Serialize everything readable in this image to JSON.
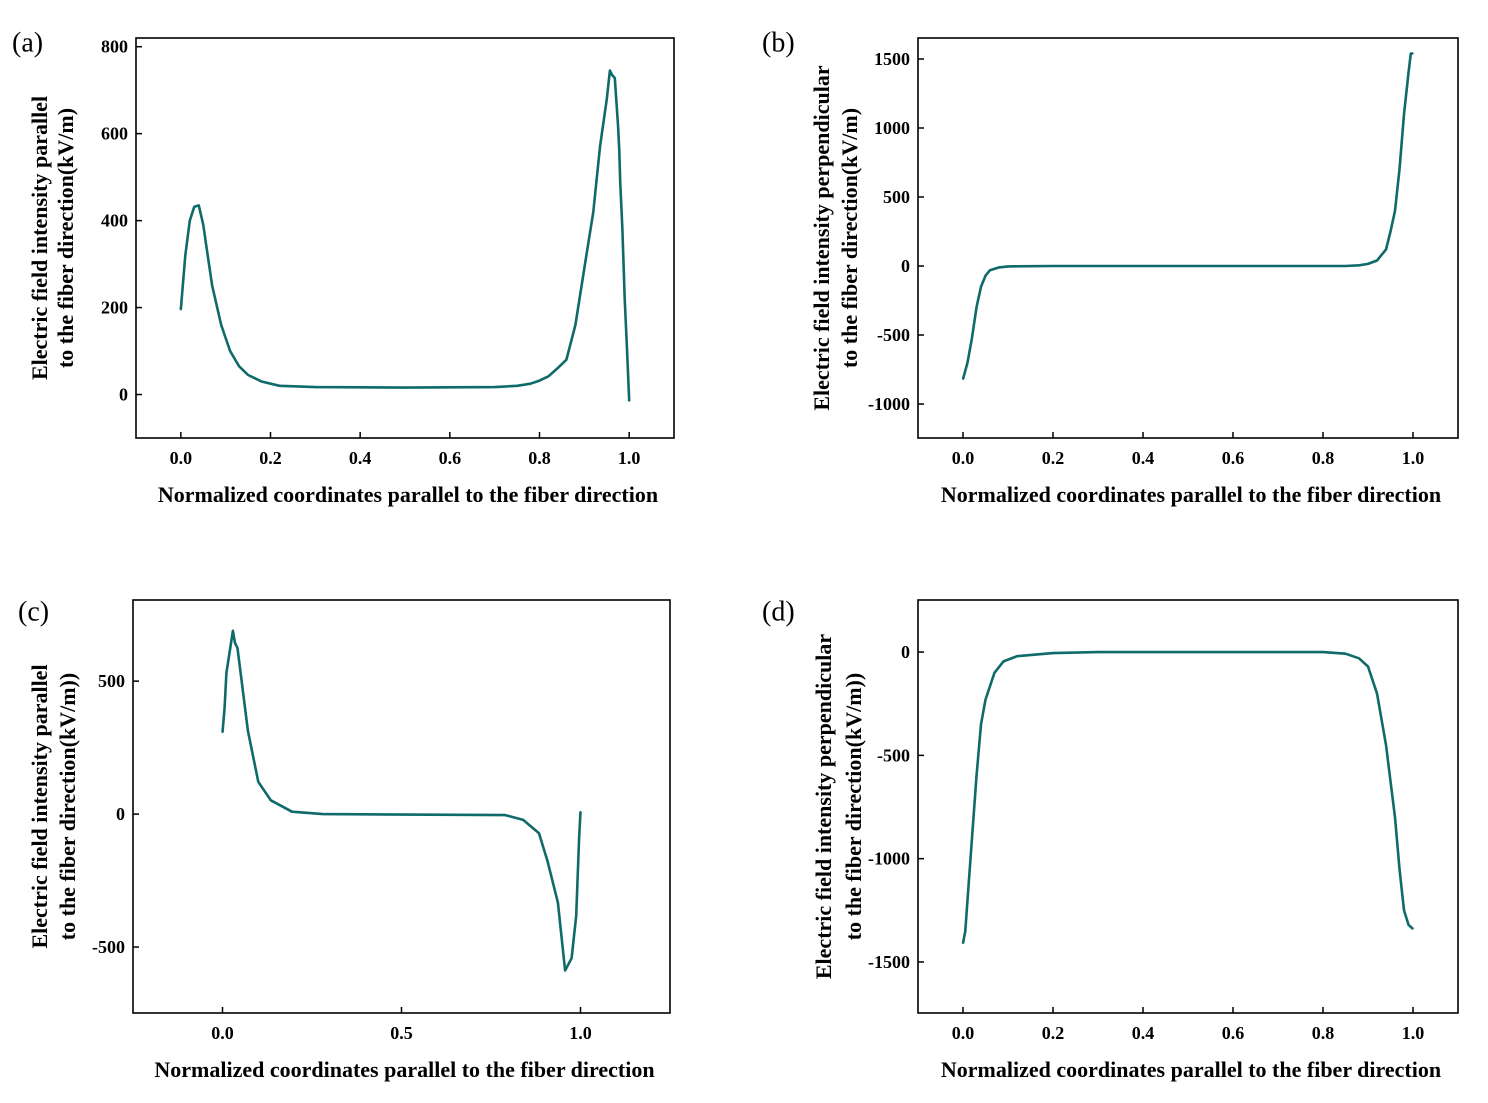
{
  "line_color": "#0f6a6a",
  "chart_data": [
    {
      "panel": "(a)",
      "type": "line",
      "xlabel": "Normalized coordinates parallel to the fiber direction",
      "ylabel": [
        "Electric field intensity parallel",
        "to the fiber direction(kV/m)"
      ],
      "xlim": [
        -0.1,
        1.1
      ],
      "ylim": [
        -100,
        820
      ],
      "xticks": [
        0.0,
        0.2,
        0.4,
        0.6,
        0.8,
        1.0
      ],
      "xtick_labels": [
        "0.0",
        "0.2",
        "0.4",
        "0.6",
        "0.8",
        "1.0"
      ],
      "yticks": [
        0,
        200,
        400,
        600,
        800
      ],
      "ytick_labels": [
        "0",
        "200",
        "400",
        "600",
        "800"
      ],
      "grid": false,
      "x": [
        0,
        0.01,
        0.02,
        0.03,
        0.04,
        0.05,
        0.06,
        0.07,
        0.09,
        0.11,
        0.13,
        0.15,
        0.18,
        0.22,
        0.3,
        0.5,
        0.7,
        0.75,
        0.78,
        0.8,
        0.82,
        0.84,
        0.86,
        0.88,
        0.9,
        0.92,
        0.935,
        0.95,
        0.957,
        0.962,
        0.968,
        0.975,
        0.978,
        0.98,
        0.985,
        0.99,
        0.995,
        1.0
      ],
      "y": [
        195,
        320,
        400,
        432,
        435,
        390,
        320,
        250,
        160,
        100,
        65,
        45,
        30,
        20,
        17,
        16,
        17,
        20,
        25,
        32,
        42,
        60,
        80,
        160,
        290,
        420,
        570,
        680,
        745,
        735,
        728,
        620,
        560,
        490,
        380,
        220,
        110,
        -15
      ]
    },
    {
      "panel": "(b)",
      "type": "line",
      "xlabel": "Normalized coordinates parallel to the fiber direction",
      "ylabel": [
        "Electric field intensity perpendicular",
        "to the fiber direction(kV/m)"
      ],
      "xlim": [
        -0.1,
        1.1
      ],
      "ylim": [
        -1246,
        1652
      ],
      "xticks": [
        0.0,
        0.2,
        0.4,
        0.6,
        0.8,
        1.0
      ],
      "xtick_labels": [
        "0.0",
        "0.2",
        "0.4",
        "0.6",
        "0.8",
        "1.0"
      ],
      "yticks": [
        -1000,
        -500,
        0,
        500,
        1000,
        1500
      ],
      "ytick_labels": [
        "-1000",
        "-500",
        "0",
        "500",
        "1000",
        "1500"
      ],
      "grid": false,
      "x": [
        0,
        0.01,
        0.02,
        0.03,
        0.04,
        0.05,
        0.06,
        0.08,
        0.1,
        0.2,
        0.85,
        0.88,
        0.9,
        0.92,
        0.94,
        0.95,
        0.96,
        0.97,
        0.98,
        0.99,
        0.995,
        1.0
      ],
      "y": [
        -820,
        -700,
        -520,
        -300,
        -150,
        -70,
        -30,
        -10,
        -3,
        0,
        0,
        5,
        15,
        40,
        120,
        250,
        400,
        700,
        1100,
        1400,
        1540,
        1540
      ]
    },
    {
      "panel": "(c)",
      "type": "line",
      "xlabel": "Normalized coordinates parallel to the fiber direction",
      "ylabel": [
        "Electric field intensity parallel",
        "to the fiber direction(kV/m))"
      ],
      "xlim": [
        -0.25,
        1.25
      ],
      "ylim": [
        -748,
        805
      ],
      "xticks": [
        0.0,
        0.5,
        1.0
      ],
      "xtick_labels": [
        "0.0",
        "0.5",
        "1.0"
      ],
      "yticks": [
        -500,
        0,
        500
      ],
      "ytick_labels": [
        "-500",
        "0",
        "500"
      ],
      "grid": false,
      "x": [
        0,
        0.006,
        0.011,
        0.029,
        0.035,
        0.042,
        0.071,
        0.1,
        0.135,
        0.194,
        0.28,
        0.79,
        0.84,
        0.884,
        0.908,
        0.937,
        0.957,
        0.975,
        0.988,
        0.996,
        1.0
      ],
      "y": [
        307,
        400,
        531,
        689,
        643,
        624,
        313,
        121,
        52,
        9,
        0,
        -4,
        -22,
        -72,
        -178,
        -333,
        -588,
        -542,
        -383,
        -91,
        9
      ]
    },
    {
      "panel": "(d)",
      "type": "line",
      "xlabel": "Normalized coordinates parallel to the fiber direction",
      "ylabel": [
        "Electric field intensity perpendicular",
        "to the fiber direction(kV/m))"
      ],
      "xlim": [
        -0.1,
        1.1
      ],
      "ylim": [
        -1747,
        252
      ],
      "xticks": [
        0.0,
        0.2,
        0.4,
        0.6,
        0.8,
        1.0
      ],
      "xtick_labels": [
        "0.0",
        "0.2",
        "0.4",
        "0.6",
        "0.8",
        "1.0"
      ],
      "yticks": [
        -1500,
        -1000,
        -500,
        0
      ],
      "ytick_labels": [
        "-1500",
        "-1000",
        "-500",
        "0"
      ],
      "grid": false,
      "x": [
        0,
        0.005,
        0.01,
        0.02,
        0.03,
        0.04,
        0.05,
        0.07,
        0.09,
        0.12,
        0.2,
        0.3,
        0.8,
        0.85,
        0.88,
        0.9,
        0.92,
        0.94,
        0.96,
        0.97,
        0.98,
        0.99,
        1.0
      ],
      "y": [
        -1410,
        -1350,
        -1200,
        -900,
        -600,
        -350,
        -230,
        -100,
        -45,
        -20,
        -5,
        0,
        0,
        -8,
        -30,
        -70,
        -200,
        -450,
        -800,
        -1050,
        -1250,
        -1320,
        -1340
      ]
    }
  ]
}
